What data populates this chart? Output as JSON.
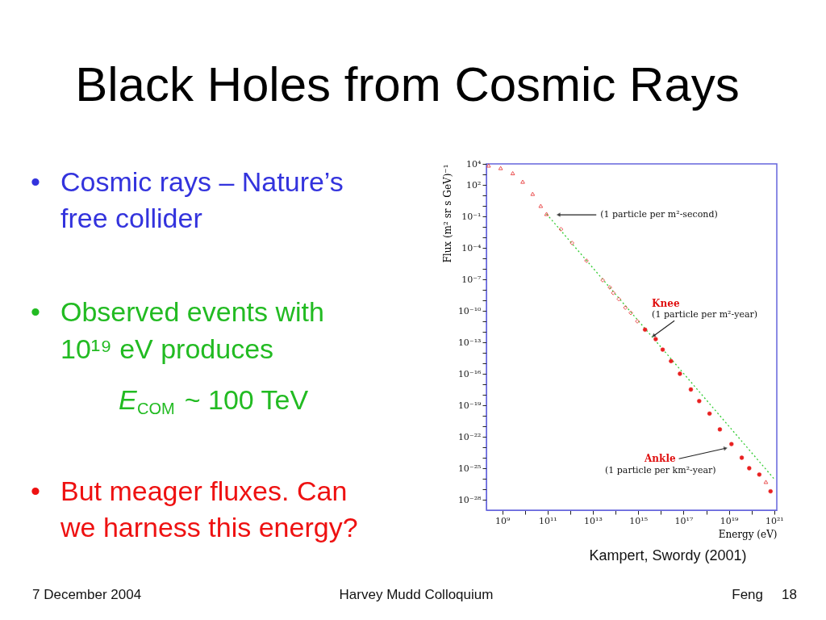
{
  "chart_data": {
    "type": "scatter",
    "title": "Black Holes from Cosmic Rays",
    "xlabel": "Energy (eV)",
    "ylabel": "Flux (m² sr s GeV)⁻¹",
    "log": "xy",
    "grid": false,
    "xlim": [
      200000000.0,
      1.3e+21
    ],
    "ylim": [
      1e-29,
      10000.0
    ],
    "xticks": [
      {
        "value": 1000000000.0,
        "label": "10⁹"
      },
      {
        "value": 10000000000.0,
        "label": null
      },
      {
        "value": 100000000000.0,
        "label": "10¹¹"
      },
      {
        "value": 1000000000000.0,
        "label": null
      },
      {
        "value": 10000000000000.0,
        "label": "10¹³"
      },
      {
        "value": 100000000000000.0,
        "label": null
      },
      {
        "value": 1000000000000000.0,
        "label": "10¹⁵"
      },
      {
        "value": 1e+16,
        "label": null
      },
      {
        "value": 1e+17,
        "label": "10¹⁷"
      },
      {
        "value": 1e+18,
        "label": null
      },
      {
        "value": 1e+19,
        "label": "10¹⁹"
      },
      {
        "value": 1e+20,
        "label": null
      },
      {
        "value": 1e+21,
        "label": "10²¹"
      }
    ],
    "yticks": [
      {
        "value": 10000.0,
        "label": "10⁴"
      },
      {
        "value": 1000.0,
        "label": null
      },
      {
        "value": 100.0,
        "label": "10²"
      },
      {
        "value": 10.0,
        "label": null
      },
      {
        "value": 1,
        "label": null
      },
      {
        "value": 0.1,
        "label": "10⁻¹"
      },
      {
        "value": 0.01,
        "label": null
      },
      {
        "value": 0.001,
        "label": null
      },
      {
        "value": 0.0001,
        "label": "10⁻⁴"
      },
      {
        "value": 1e-05,
        "label": null
      },
      {
        "value": 1e-06,
        "label": null
      },
      {
        "value": 1e-07,
        "label": "10⁻⁷"
      },
      {
        "value": 1e-08,
        "label": null
      },
      {
        "value": 1e-09,
        "label": null
      },
      {
        "value": 1e-10,
        "label": "10⁻¹⁰"
      },
      {
        "value": 1e-11,
        "label": null
      },
      {
        "value": 1e-12,
        "label": null
      },
      {
        "value": 1e-13,
        "label": "10⁻¹³"
      },
      {
        "value": 1e-14,
        "label": null
      },
      {
        "value": 1e-15,
        "label": null
      },
      {
        "value": 1e-16,
        "label": "10⁻¹⁶"
      },
      {
        "value": 1e-17,
        "label": null
      },
      {
        "value": 1e-18,
        "label": null
      },
      {
        "value": 1e-19,
        "label": "10⁻¹⁹"
      },
      {
        "value": 1e-20,
        "label": null
      },
      {
        "value": 1e-21,
        "label": null
      },
      {
        "value": 1e-22,
        "label": "10⁻²²"
      },
      {
        "value": 1e-23,
        "label": null
      },
      {
        "value": 1e-24,
        "label": null
      },
      {
        "value": 1e-25,
        "label": "10⁻²⁵"
      },
      {
        "value": 1e-26,
        "label": null
      },
      {
        "value": 1e-27,
        "label": null
      },
      {
        "value": 1e-28,
        "label": "10⁻²⁸"
      }
    ],
    "series": [
      {
        "type": "line",
        "color": "#33cc33",
        "line_style": "dotted",
        "x": [
          90000000000.0,
          9.8e+20
        ],
        "values": [
          0.17,
          1e-26
        ]
      },
      {
        "color": "#e84040",
        "marker": "triangle",
        "x": [
          250000000.0,
          850000000.0,
          2900000000.0,
          8000000000.0,
          22000000000.0,
          50000000000.0,
          90000000000.0,
          4.3e+20
        ],
        "values": [
          7000.0,
          4000.0,
          1300.0,
          200,
          14,
          1,
          0.17,
          5e-27
        ]
      },
      {
        "color": "#e84040",
        "marker": "diamond",
        "x": [
          390000000000.0,
          1200000000000.0,
          5200000000000.0,
          27000000000000.0,
          56000000000000.0,
          79000000000000.0,
          140000000000000.0,
          270000000000000.0,
          470000000000000.0,
          910000000000000.0
        ],
        "values": [
          0.0059,
          0.00029,
          5.9e-06,
          8.3e-08,
          1.7e-08,
          5e-09,
          1.3e-09,
          2e-10,
          6.3e-11,
          1e-11
        ]
      },
      {
        "color": "#e82020",
        "marker": "circle",
        "x": [
          2000000000000000.0,
          5900000000000000.0,
          1.2e+16,
          2.8e+16,
          6.9e+16,
          2.1e+17,
          4.9e+17,
          1.4e+18,
          4e+18,
          1.3e+19,
          3.7e+19,
          7.9e+19,
          2.2e+20,
          6.9e+20
        ],
        "values": [
          1.6e-12,
          2e-13,
          2e-14,
          1.6e-15,
          1e-16,
          3.2e-18,
          2.5e-19,
          1.6e-20,
          5e-22,
          2e-23,
          1e-24,
          1e-25,
          2.5e-26,
          6.3e-28
        ]
      }
    ],
    "annotations": [
      {
        "text": "(1 particle per m²-second)",
        "x": 300000000000.0,
        "y": 0.14
      },
      {
        "text": "Knee",
        "x": 4700000000000000.0,
        "y": 4e-13
      },
      {
        "text": "(1 particle per m²-year)",
        "x": 4700000000000000.0,
        "y": 4e-13
      },
      {
        "text": "Ankle",
        "x": 7.2e+18,
        "y": 8e-24
      },
      "(1 particle per km²-year)",
      "Kampert, Swordy (2001)",
      "• Cosmic rays – Nature’s",
      "free collider",
      "• Observed events with",
      "10¹⁹ eV produces",
      "E$_{COM}$ ~ 100 TeV",
      "• But meager fluxes.  Can",
      "we harness this energy?",
      "7 December 2004",
      "Harvey Mudd Colloquium",
      "Feng",
      "18"
    ]
  }
}
